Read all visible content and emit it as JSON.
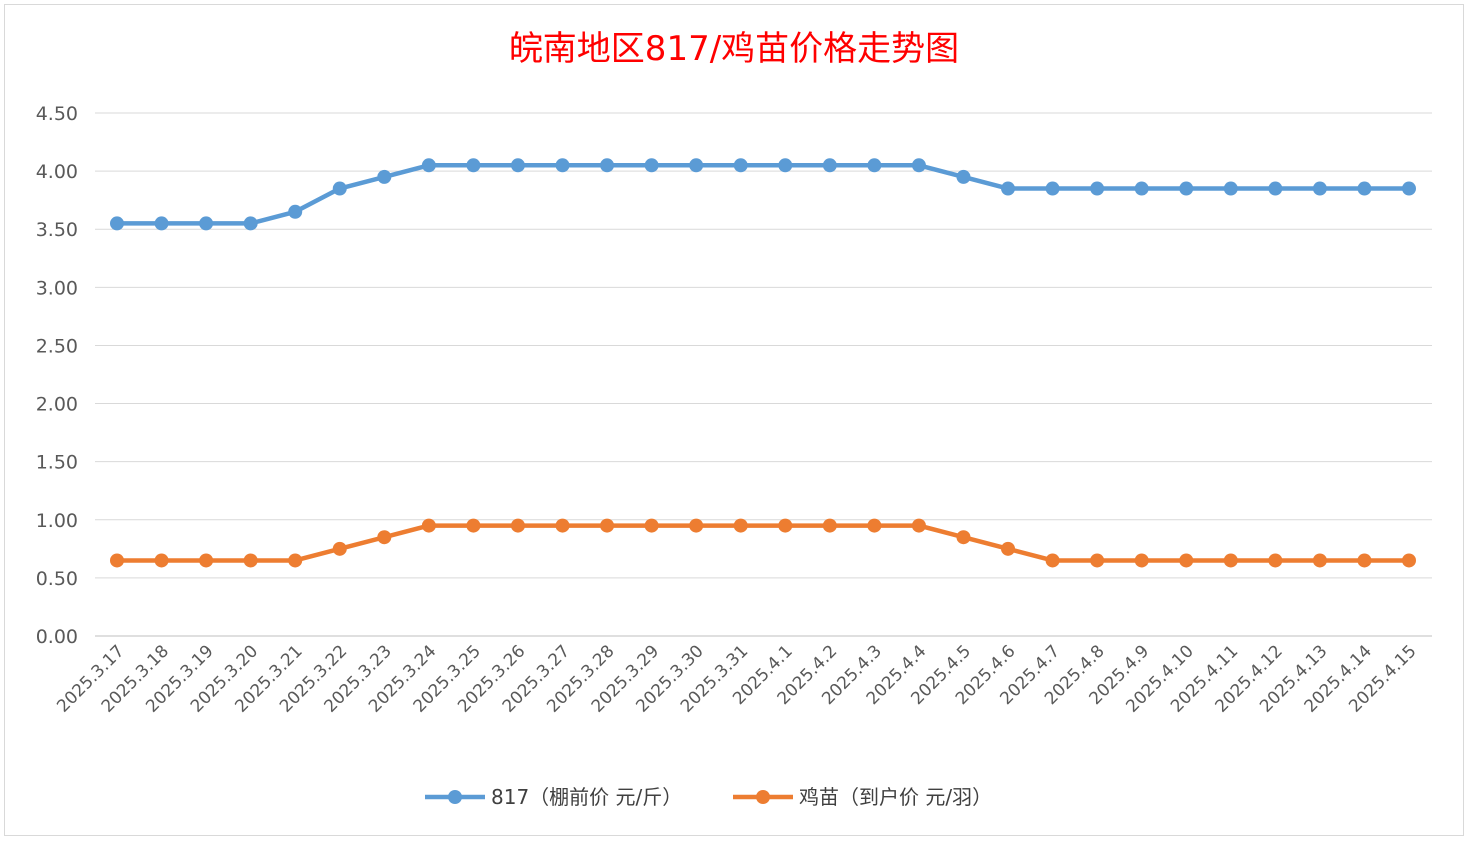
{
  "chart_data": {
    "type": "line",
    "title": "皖南地区817/鸡苗价格走势图",
    "xlabel": "",
    "ylabel": "",
    "ylim": [
      0,
      4.5
    ],
    "yticks": [
      "0.00",
      "0.50",
      "1.00",
      "1.50",
      "2.00",
      "2.50",
      "3.00",
      "3.50",
      "4.00",
      "4.50"
    ],
    "grid": true,
    "legend_position": "bottom",
    "categories": [
      "2025.3.17",
      "2025.3.18",
      "2025.3.19",
      "2025.3.20",
      "2025.3.21",
      "2025.3.22",
      "2025.3.23",
      "2025.3.24",
      "2025.3.25",
      "2025.3.26",
      "2025.3.27",
      "2025.3.28",
      "2025.3.29",
      "2025.3.30",
      "2025.3.31",
      "2025.4.1",
      "2025.4.2",
      "2025.4.3",
      "2025.4.4",
      "2025.4.5",
      "2025.4.6",
      "2025.4.7",
      "2025.4.8",
      "2025.4.9",
      "2025.4.10",
      "2025.4.11",
      "2025.4.12",
      "2025.4.13",
      "2025.4.14",
      "2025.4.15"
    ],
    "series": [
      {
        "name": "817（棚前价 元/斤）",
        "color": "#5b9bd5",
        "values": [
          3.55,
          3.55,
          3.55,
          3.55,
          3.65,
          3.85,
          3.95,
          4.05,
          4.05,
          4.05,
          4.05,
          4.05,
          4.05,
          4.05,
          4.05,
          4.05,
          4.05,
          4.05,
          4.05,
          3.95,
          3.85,
          3.85,
          3.85,
          3.85,
          3.85,
          3.85,
          3.85,
          3.85,
          3.85,
          3.85
        ]
      },
      {
        "name": "鸡苗（到户价 元/羽）",
        "color": "#ed7d31",
        "values": [
          0.65,
          0.65,
          0.65,
          0.65,
          0.65,
          0.75,
          0.85,
          0.95,
          0.95,
          0.95,
          0.95,
          0.95,
          0.95,
          0.95,
          0.95,
          0.95,
          0.95,
          0.95,
          0.95,
          0.85,
          0.75,
          0.65,
          0.65,
          0.65,
          0.65,
          0.65,
          0.65,
          0.65,
          0.65,
          0.65
        ]
      }
    ]
  }
}
